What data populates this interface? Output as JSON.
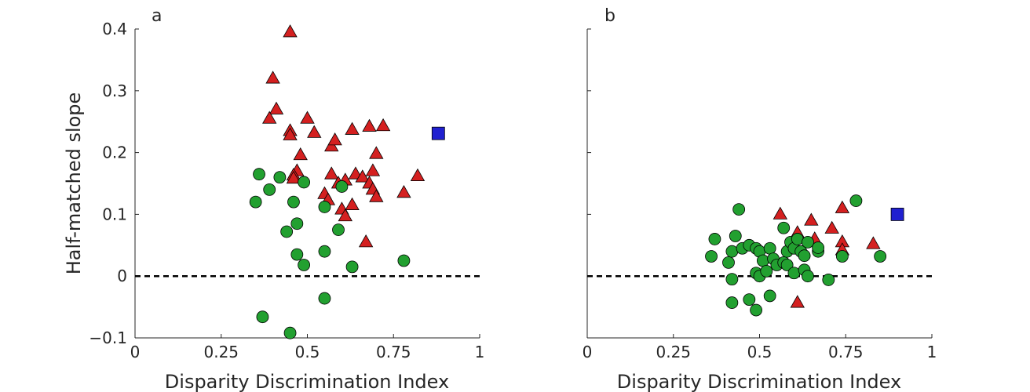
{
  "chart_data": [
    {
      "type": "scatter",
      "panel_label": "a",
      "xlabel": "Disparity Discrimination Index",
      "ylabel": "Half-matched slope",
      "xlim": [
        0,
        1
      ],
      "ylim": [
        -0.1,
        0.4
      ],
      "xticks": [
        0,
        0.25,
        0.5,
        0.75,
        1
      ],
      "xtick_labels": [
        "0",
        "0.25",
        "0.5",
        "0.75",
        "1"
      ],
      "yticks": [
        -0.1,
        0,
        0.1,
        0.2,
        0.3,
        0.4
      ],
      "ytick_labels": [
        "-0.1",
        "0",
        "0.1",
        "0.2",
        "0.3",
        "0.4"
      ],
      "grid": false,
      "reference_line": {
        "y": 0,
        "style": "dashed"
      },
      "series": [
        {
          "marker": "triangle",
          "color": "#d42020",
          "points": [
            [
              0.45,
              0.395
            ],
            [
              0.4,
              0.32
            ],
            [
              0.41,
              0.27
            ],
            [
              0.39,
              0.255
            ],
            [
              0.45,
              0.235
            ],
            [
              0.45,
              0.228
            ],
            [
              0.5,
              0.255
            ],
            [
              0.52,
              0.232
            ],
            [
              0.48,
              0.196
            ],
            [
              0.57,
              0.21
            ],
            [
              0.58,
              0.22
            ],
            [
              0.63,
              0.237
            ],
            [
              0.68,
              0.242
            ],
            [
              0.72,
              0.243
            ],
            [
              0.7,
              0.198
            ],
            [
              0.47,
              0.17
            ],
            [
              0.46,
              0.163
            ],
            [
              0.57,
              0.165
            ],
            [
              0.59,
              0.15
            ],
            [
              0.61,
              0.155
            ],
            [
              0.64,
              0.165
            ],
            [
              0.66,
              0.16
            ],
            [
              0.69,
              0.17
            ],
            [
              0.68,
              0.15
            ],
            [
              0.69,
              0.14
            ],
            [
              0.7,
              0.128
            ],
            [
              0.55,
              0.133
            ],
            [
              0.56,
              0.123
            ],
            [
              0.6,
              0.108
            ],
            [
              0.61,
              0.097
            ],
            [
              0.63,
              0.115
            ],
            [
              0.78,
              0.135
            ],
            [
              0.82,
              0.162
            ],
            [
              0.67,
              0.055
            ],
            [
              0.46,
              0.158
            ]
          ]
        },
        {
          "marker": "circle",
          "color": "#22a030",
          "points": [
            [
              0.36,
              0.165
            ],
            [
              0.39,
              0.14
            ],
            [
              0.42,
              0.16
            ],
            [
              0.35,
              0.12
            ],
            [
              0.49,
              0.152
            ],
            [
              0.46,
              0.12
            ],
            [
              0.55,
              0.112
            ],
            [
              0.6,
              0.145
            ],
            [
              0.44,
              0.072
            ],
            [
              0.47,
              0.085
            ],
            [
              0.59,
              0.075
            ],
            [
              0.47,
              0.035
            ],
            [
              0.49,
              0.018
            ],
            [
              0.55,
              0.04
            ],
            [
              0.63,
              0.015
            ],
            [
              0.78,
              0.025
            ],
            [
              0.55,
              -0.036
            ],
            [
              0.37,
              -0.066
            ],
            [
              0.45,
              -0.092
            ]
          ]
        },
        {
          "marker": "square",
          "color": "#2020d0",
          "points": [
            [
              0.88,
              0.231
            ]
          ]
        }
      ]
    },
    {
      "type": "scatter",
      "panel_label": "b",
      "xlabel": "Disparity Discrimination Index",
      "ylabel": "",
      "xlim": [
        0,
        1
      ],
      "ylim": [
        -0.1,
        0.4
      ],
      "xticks": [
        0,
        0.25,
        0.5,
        0.75,
        1
      ],
      "xtick_labels": [
        "0",
        "0.25",
        "0.5",
        "0.75",
        "1"
      ],
      "yticks": [
        -0.1,
        0,
        0.1,
        0.2,
        0.3,
        0.4
      ],
      "ytick_labels": [],
      "grid": false,
      "reference_line": {
        "y": 0,
        "style": "dashed"
      },
      "series": [
        {
          "marker": "triangle",
          "color": "#d42020",
          "points": [
            [
              0.56,
              0.1
            ],
            [
              0.65,
              0.09
            ],
            [
              0.74,
              0.11
            ],
            [
              0.71,
              0.077
            ],
            [
              0.74,
              0.055
            ],
            [
              0.74,
              0.042
            ],
            [
              0.83,
              0.052
            ],
            [
              0.61,
              0.07
            ],
            [
              0.66,
              0.06
            ],
            [
              0.61,
              -0.043
            ]
          ]
        },
        {
          "marker": "circle",
          "color": "#22a030",
          "points": [
            [
              0.44,
              0.108
            ],
            [
              0.78,
              0.122
            ],
            [
              0.37,
              0.06
            ],
            [
              0.43,
              0.065
            ],
            [
              0.36,
              0.032
            ],
            [
              0.41,
              0.022
            ],
            [
              0.42,
              0.04
            ],
            [
              0.45,
              0.045
            ],
            [
              0.47,
              0.05
            ],
            [
              0.49,
              0.045
            ],
            [
              0.5,
              0.04
            ],
            [
              0.51,
              0.025
            ],
            [
              0.53,
              0.045
            ],
            [
              0.54,
              0.028
            ],
            [
              0.55,
              0.018
            ],
            [
              0.57,
              0.022
            ],
            [
              0.58,
              0.04
            ],
            [
              0.57,
              0.078
            ],
            [
              0.59,
              0.055
            ],
            [
              0.6,
              0.045
            ],
            [
              0.61,
              0.06
            ],
            [
              0.62,
              0.04
            ],
            [
              0.63,
              0.033
            ],
            [
              0.64,
              0.055
            ],
            [
              0.67,
              0.04
            ],
            [
              0.67,
              0.046
            ],
            [
              0.74,
              0.032
            ],
            [
              0.85,
              0.032
            ],
            [
              0.42,
              -0.005
            ],
            [
              0.49,
              0.005
            ],
            [
              0.5,
              0.0
            ],
            [
              0.52,
              0.008
            ],
            [
              0.58,
              0.018
            ],
            [
              0.6,
              0.005
            ],
            [
              0.63,
              0.01
            ],
            [
              0.64,
              0.0
            ],
            [
              0.7,
              -0.006
            ],
            [
              0.42,
              -0.043
            ],
            [
              0.47,
              -0.038
            ],
            [
              0.53,
              -0.032
            ],
            [
              0.49,
              -0.055
            ]
          ]
        },
        {
          "marker": "square",
          "color": "#2020d0",
          "points": [
            [
              0.9,
              0.1
            ]
          ]
        }
      ]
    }
  ]
}
